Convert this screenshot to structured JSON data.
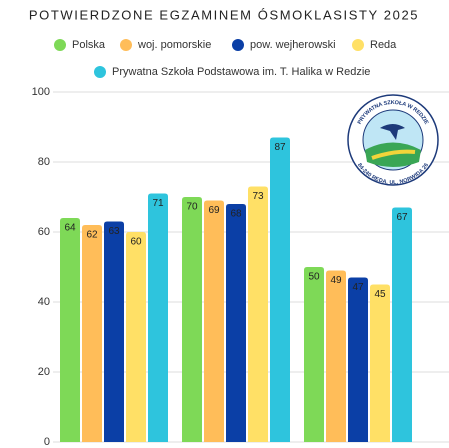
{
  "chart_data": {
    "type": "bar",
    "title": "POTWIERDZONE EGZAMINEM ÓSMOKLASISTY 2025",
    "categories": [
      null,
      null,
      null
    ],
    "series": [
      {
        "name": "Polska",
        "color": "#7ed957",
        "values": [
          64,
          70,
          50
        ]
      },
      {
        "name": "woj. pomorskie",
        "color": "#ffbd59",
        "values": [
          62,
          69,
          49
        ]
      },
      {
        "name": "pow. wejherowski",
        "color": "#0b3fa6",
        "values": [
          63,
          68,
          47
        ]
      },
      {
        "name": "Reda",
        "color": "#ffe066",
        "values": [
          60,
          73,
          45
        ]
      },
      {
        "name": "Prywatna Szkoła Podstawowa im. T. Halika w Redzie",
        "color": "#2ec4dd",
        "values": [
          71,
          87,
          67
        ]
      }
    ],
    "ylim": [
      0,
      100
    ],
    "yticks": [
      0,
      20,
      40,
      60,
      80,
      100
    ],
    "grid": true
  },
  "logo": {
    "top_text": "PRYWATNA SZKOŁA W REDZIE",
    "bottom_text": "84-240 REDA, UL. NORWIDA 26"
  }
}
